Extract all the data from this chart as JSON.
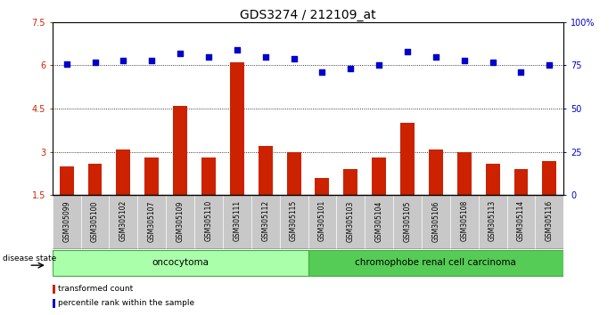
{
  "title": "GDS3274 / 212109_at",
  "samples": [
    "GSM305099",
    "GSM305100",
    "GSM305102",
    "GSM305107",
    "GSM305109",
    "GSM305110",
    "GSM305111",
    "GSM305112",
    "GSM305115",
    "GSM305101",
    "GSM305103",
    "GSM305104",
    "GSM305105",
    "GSM305106",
    "GSM305108",
    "GSM305113",
    "GSM305114",
    "GSM305116"
  ],
  "bar_values": [
    2.5,
    2.6,
    3.1,
    2.8,
    4.6,
    2.8,
    6.1,
    3.2,
    3.0,
    2.1,
    2.4,
    2.8,
    4.0,
    3.1,
    3.0,
    2.6,
    2.4,
    2.7
  ],
  "dot_values": [
    76,
    77,
    78,
    78,
    82,
    80,
    84,
    80,
    79,
    71,
    73,
    75,
    83,
    80,
    78,
    77,
    71,
    75
  ],
  "bar_color": "#cc2200",
  "dot_color": "#0000cc",
  "ylim_left": [
    1.5,
    7.5
  ],
  "ylim_right": [
    0,
    100
  ],
  "yticks_left": [
    1.5,
    3.0,
    4.5,
    6.0,
    7.5
  ],
  "yticks_right": [
    0,
    25,
    50,
    75,
    100
  ],
  "ytick_labels_left": [
    "1.5",
    "3",
    "4.5",
    "6",
    "7.5"
  ],
  "ytick_labels_right": [
    "0",
    "25",
    "50",
    "75",
    "100%"
  ],
  "group1_label": "oncocytoma",
  "group2_label": "chromophobe renal cell carcinoma",
  "group1_count": 9,
  "group2_count": 9,
  "disease_state_label": "disease state",
  "legend_bar_label": "transformed count",
  "legend_dot_label": "percentile rank within the sample",
  "bar_color_hex": "#cc2200",
  "dot_color_hex": "#0000cc",
  "tick_label_area_color": "#c8c8c8",
  "group1_color": "#aaffaa",
  "group2_color": "#55cc55",
  "title_fontsize": 10,
  "tick_fontsize": 7,
  "label_fontsize": 7.5
}
